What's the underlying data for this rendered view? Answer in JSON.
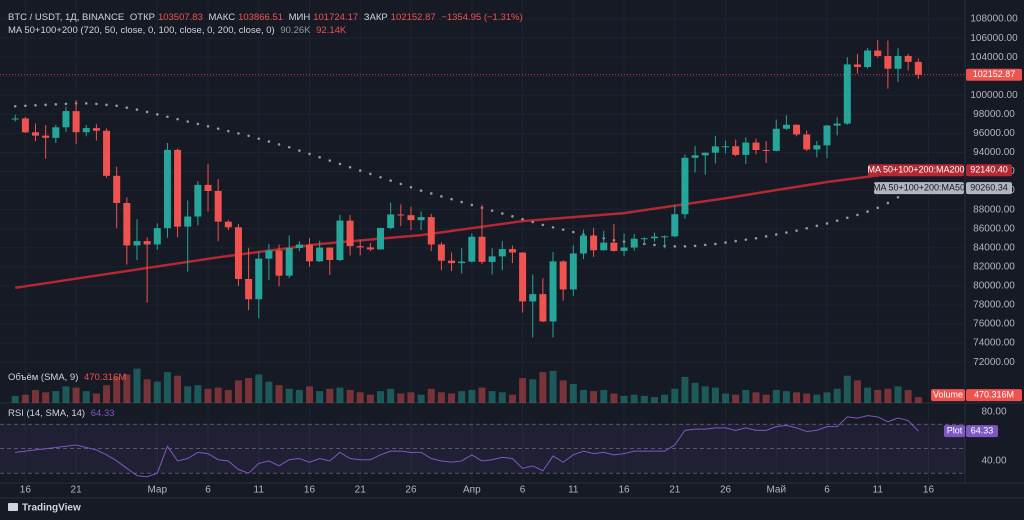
{
  "chart_data": {
    "type": "candlestick",
    "title": "BTC / USDT, 1Д, BINANCE",
    "ohlc_labels": [
      "ОТКР",
      "МАКС",
      "МИН",
      "ЗАКР"
    ],
    "change": "−1354.95 (−1.31%)",
    "indicator_title": "MA 50+100+200 (720, 50, close, 0, 100, close, 0, 200, close, 0)",
    "colors": {
      "up": "#26a69a",
      "down": "#ef5350"
    },
    "xlim": [
      -1.5,
      93.6
    ],
    "xticks": [
      {
        "value": 1,
        "label": "16"
      },
      {
        "value": 6,
        "label": "21"
      },
      {
        "value": 14,
        "label": "Мар"
      },
      {
        "value": 19,
        "label": "6"
      },
      {
        "value": 24,
        "label": "11"
      },
      {
        "value": 29,
        "label": "16"
      },
      {
        "value": 34,
        "label": "21"
      },
      {
        "value": 39,
        "label": "26"
      },
      {
        "value": 45,
        "label": "Апр"
      },
      {
        "value": 50,
        "label": "6"
      },
      {
        "value": 55,
        "label": "11"
      },
      {
        "value": 60,
        "label": "16"
      },
      {
        "value": 65,
        "label": "21"
      },
      {
        "value": 70,
        "label": "26"
      },
      {
        "value": 75,
        "label": "Май"
      },
      {
        "value": 80,
        "label": "6"
      },
      {
        "value": 85,
        "label": "11"
      },
      {
        "value": 90,
        "label": "16"
      }
    ],
    "ylim": [
      71700,
      110000
    ],
    "yticks": [
      {
        "value": 72000,
        "label": "72000.00"
      },
      {
        "value": 74000,
        "label": "74000.00"
      },
      {
        "value": 76000,
        "label": "76000.00"
      },
      {
        "value": 78000,
        "label": "78000.00"
      },
      {
        "value": 80000,
        "label": "80000.00"
      },
      {
        "value": 82000,
        "label": "82000.00"
      },
      {
        "value": 84000,
        "label": "84000.00"
      },
      {
        "value": 86000,
        "label": "86000.00"
      },
      {
        "value": 88000,
        "label": "88000.00"
      },
      {
        "value": 90000,
        "label": "90000.00"
      },
      {
        "value": 92000,
        "label": "92000.00"
      },
      {
        "value": 94000,
        "label": "94000.00"
      },
      {
        "value": 96000,
        "label": "96000.00"
      },
      {
        "value": 98000,
        "label": "98000.00"
      },
      {
        "value": 100000,
        "label": "100000.00"
      },
      {
        "value": 102000,
        "label": "102000.00"
      },
      {
        "value": 104000,
        "label": "104000.00"
      },
      {
        "value": 106000,
        "label": "106000.00"
      },
      {
        "value": 108000,
        "label": "108000.00"
      }
    ],
    "ohlc": [
      [
        97500,
        97970,
        97250,
        97570
      ],
      [
        97570,
        97730,
        96050,
        96120
      ],
      [
        96120,
        97050,
        95200,
        95770
      ],
      [
        95770,
        96880,
        93340,
        95540
      ],
      [
        95540,
        96900,
        95000,
        96640
      ],
      [
        96640,
        98800,
        96150,
        98340
      ],
      [
        98340,
        99500,
        94870,
        96130
      ],
      [
        96130,
        96900,
        95700,
        96560
      ],
      [
        96560,
        96960,
        95250,
        96280
      ],
      [
        96280,
        96520,
        91350,
        91550
      ],
      [
        91550,
        92500,
        86050,
        88700
      ],
      [
        88700,
        89290,
        82250,
        84250
      ],
      [
        84250,
        87000,
        82700,
        84700
      ],
      [
        84700,
        85120,
        78250,
        84350
      ],
      [
        84350,
        86560,
        83800,
        86060
      ],
      [
        86060,
        95000,
        85050,
        94270
      ],
      [
        94270,
        94420,
        85100,
        86220
      ],
      [
        86220,
        88970,
        81500,
        87280
      ],
      [
        87280,
        91000,
        86350,
        90600
      ],
      [
        90600,
        92800,
        87800,
        89960
      ],
      [
        89960,
        91200,
        84700,
        86740
      ],
      [
        86740,
        86900,
        85850,
        86150
      ],
      [
        86150,
        86500,
        80000,
        80730
      ],
      [
        80730,
        84000,
        77450,
        78600
      ],
      [
        78600,
        83600,
        76600,
        82860
      ],
      [
        82860,
        84400,
        80600,
        83720
      ],
      [
        83720,
        84350,
        79950,
        81070
      ],
      [
        81070,
        85300,
        80800,
        83970
      ],
      [
        83970,
        84700,
        83650,
        84340
      ],
      [
        84340,
        85000,
        82000,
        82580
      ],
      [
        82580,
        84750,
        82500,
        84020
      ],
      [
        84020,
        84050,
        81150,
        82720
      ],
      [
        82720,
        87450,
        82600,
        86850
      ],
      [
        86850,
        87450,
        83200,
        84170
      ],
      [
        84170,
        84850,
        83200,
        84040
      ],
      [
        84040,
        84500,
        83650,
        83830
      ],
      [
        83830,
        86100,
        83800,
        86080
      ],
      [
        86080,
        88750,
        85950,
        87500
      ],
      [
        87500,
        88550,
        86300,
        87420
      ],
      [
        87420,
        88300,
        85850,
        86900
      ],
      [
        86900,
        87800,
        85850,
        87220
      ],
      [
        87220,
        87550,
        83650,
        84350
      ],
      [
        84350,
        84570,
        81650,
        82650
      ],
      [
        82650,
        83500,
        81550,
        82390
      ],
      [
        82390,
        83950,
        81300,
        82550
      ],
      [
        82550,
        85500,
        82450,
        85160
      ],
      [
        85160,
        88500,
        82300,
        82520
      ],
      [
        82520,
        83950,
        81200,
        83100
      ],
      [
        83100,
        84700,
        81650,
        83860
      ],
      [
        83860,
        84250,
        82400,
        83500
      ],
      [
        83500,
        83550,
        77200,
        78370
      ],
      [
        78370,
        81200,
        74600,
        79140
      ],
      [
        79140,
        80800,
        76200,
        76270
      ],
      [
        76270,
        83550,
        74600,
        82570
      ],
      [
        82570,
        82700,
        78450,
        79630
      ],
      [
        79630,
        84250,
        78950,
        83400
      ],
      [
        83400,
        85900,
        82800,
        85280
      ],
      [
        85280,
        86100,
        83050,
        83740
      ],
      [
        83740,
        85800,
        83700,
        84540
      ],
      [
        84540,
        86500,
        83600,
        83670
      ],
      [
        83670,
        85500,
        83100,
        84030
      ],
      [
        84030,
        85450,
        83700,
        84950
      ],
      [
        84950,
        85100,
        84300,
        85000
      ],
      [
        85000,
        85600,
        84650,
        85170
      ],
      [
        85170,
        85300,
        83950,
        85200
      ],
      [
        85200,
        88500,
        85100,
        87520
      ],
      [
        87520,
        93800,
        87050,
        93440
      ],
      [
        93440,
        94700,
        91900,
        93700
      ],
      [
        93700,
        94000,
        91650,
        93980
      ],
      [
        93980,
        95750,
        92850,
        94640
      ],
      [
        94640,
        95250,
        93900,
        94650
      ],
      [
        94650,
        95350,
        93600,
        93750
      ],
      [
        93750,
        95600,
        92800,
        95040
      ],
      [
        95040,
        95450,
        93800,
        94260
      ],
      [
        94260,
        95200,
        92900,
        94170
      ],
      [
        94170,
        97450,
        94120,
        96490
      ],
      [
        96490,
        97900,
        96350,
        96910
      ],
      [
        96910,
        96950,
        95700,
        95890
      ],
      [
        95890,
        96300,
        94150,
        94320
      ],
      [
        94320,
        95200,
        93500,
        94750
      ],
      [
        94750,
        96900,
        93400,
        96830
      ],
      [
        96830,
        97700,
        95800,
        97030
      ],
      [
        97030,
        104000,
        96900,
        103240
      ],
      [
        103240,
        104350,
        102300,
        102970
      ],
      [
        102970,
        104950,
        102800,
        104700
      ],
      [
        104700,
        105800,
        103950,
        104120
      ],
      [
        104120,
        105750,
        100700,
        102790
      ],
      [
        102790,
        104950,
        101400,
        104130
      ],
      [
        104130,
        104350,
        102600,
        103510
      ],
      [
        103507.83,
        103866.51,
        101724.17,
        102152.87
      ]
    ],
    "ma": [
      {
        "name": "MA 50+100+200:MA50",
        "color": "#9598a1",
        "short_label": "90.26K",
        "last_label": "90260.34",
        "values": [
          98850,
          98900,
          98950,
          99000,
          99050,
          99100,
          99150,
          99150,
          99100,
          99000,
          98900,
          98700,
          98500,
          98250,
          98000,
          97750,
          97500,
          97250,
          97000,
          96750,
          96500,
          96250,
          96000,
          95750,
          95450,
          95150,
          94850,
          94550,
          94200,
          93850,
          93500,
          93150,
          92800,
          92450,
          92100,
          91750,
          91400,
          91050,
          90700,
          90350,
          90000,
          89700,
          89400,
          89100,
          88800,
          88500,
          88200,
          87900,
          87600,
          87300,
          87000,
          86700,
          86400,
          86150,
          85900,
          85650,
          85400,
          85200,
          85000,
          84800,
          84650,
          84500,
          84400,
          84300,
          84200,
          84150,
          84150,
          84200,
          84300,
          84400,
          84550,
          84700,
          84850,
          85000,
          85200,
          85400,
          85600,
          85800,
          86050,
          86300,
          86550,
          86850,
          87150,
          87450,
          87800,
          88200,
          88700,
          89300,
          89800,
          90260.34
        ]
      },
      {
        "name": "MA 50+100+200:MA200",
        "color": "#b22833",
        "short_label": "92.14K",
        "last_label": "92140.40",
        "x": [
          0,
          10,
          20,
          30,
          40,
          50,
          60,
          70,
          80,
          89
        ],
        "values": [
          79800,
          81400,
          83000,
          84400,
          85330,
          86800,
          87640,
          89200,
          90900,
          92140.4
        ]
      }
    ],
    "volume": {
      "title": "Объём (SMA, 9)",
      "sma": {
        "value": 470.316,
        "label": "470.316M"
      },
      "axis_label": "Volume",
      "ylim": [
        0,
        3200
      ],
      "values": [
        600,
        700,
        1100,
        900,
        1000,
        1400,
        1300,
        1000,
        800,
        1500,
        2200,
        2400,
        2900,
        2000,
        1800,
        2600,
        2300,
        1400,
        1500,
        1200,
        1300,
        1100,
        1900,
        2100,
        2400,
        1800,
        1500,
        1200,
        1100,
        1400,
        1000,
        1200,
        1300,
        1100,
        900,
        700,
        1000,
        1200,
        800,
        900,
        700,
        1200,
        900,
        800,
        1000,
        1100,
        1300,
        1000,
        900,
        700,
        2100,
        2000,
        2600,
        2700,
        1900,
        1600,
        1100,
        1000,
        1100,
        800,
        600,
        700,
        600,
        500,
        700,
        1200,
        2200,
        1700,
        1400,
        1300,
        800,
        700,
        1100,
        900,
        700,
        1100,
        1000,
        900,
        800,
        700,
        900,
        1200,
        2300,
        1900,
        1300,
        1100,
        1200,
        1400,
        1100,
        500
      ]
    },
    "rsi": {
      "title": "RSI (14, SMA, 14)",
      "axis_label": "Plot",
      "color": "#7e57c2",
      "ylim": [
        22,
        87.3
      ],
      "yticks": [
        {
          "value": 80,
          "label": "80.00"
        },
        {
          "value": 40,
          "label": "40.00"
        }
      ],
      "levels": [
        70,
        50,
        30
      ],
      "values": [
        47,
        48,
        49,
        50,
        51,
        52,
        53,
        51,
        49,
        45,
        40,
        34,
        28,
        27,
        30,
        52,
        40,
        42,
        47,
        46,
        41,
        40,
        33,
        30,
        38,
        40,
        36,
        41,
        42,
        39,
        42,
        40,
        47,
        42,
        41,
        41,
        45,
        48,
        48,
        47,
        47,
        42,
        40,
        39,
        40,
        45,
        40,
        41,
        43,
        42,
        34,
        36,
        32,
        44,
        39,
        45,
        48,
        46,
        47,
        45,
        46,
        48,
        48,
        48,
        48,
        53,
        65,
        66,
        66,
        67,
        67,
        65,
        67,
        65,
        65,
        68,
        69,
        67,
        64,
        65,
        68,
        68,
        76,
        75,
        77,
        76,
        72,
        75,
        73,
        64.33
      ]
    }
  },
  "footer": "TradingView"
}
